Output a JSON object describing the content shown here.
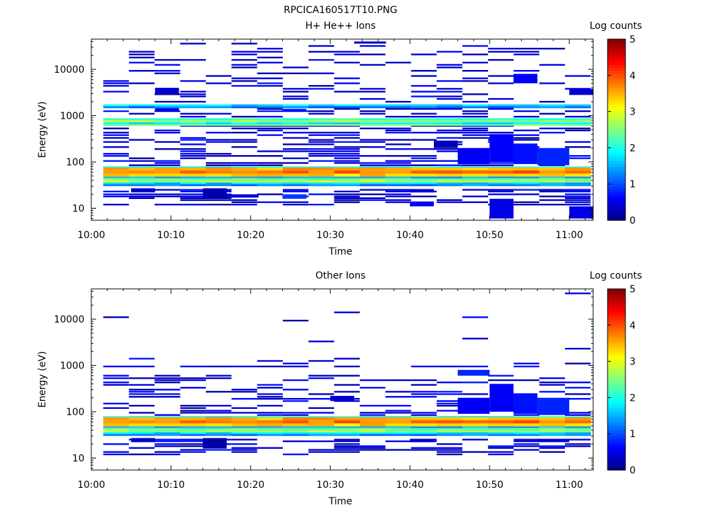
{
  "figure_title": "RPCICA160517T10.PNG",
  "chart_data": [
    {
      "type": "heatmap",
      "title": "H+ He++ Ions",
      "xlabel": "Time",
      "ylabel": "Energy (eV)",
      "colorbar_label": "Log counts",
      "colorbar_ticks": [
        "0",
        "1",
        "2",
        "3",
        "4",
        "5"
      ],
      "colorbar_range": [
        0,
        5
      ],
      "y_scale": "log",
      "ylim": [
        5.5,
        45000
      ],
      "xlim": [
        "10:00",
        "11:03"
      ],
      "x_ticks": [
        "10:00",
        "10:10",
        "10:20",
        "10:30",
        "10:40",
        "10:50",
        "11:00"
      ],
      "y_ticks": [
        "10",
        "100",
        "1000",
        "10000"
      ],
      "background_bands": [
        {
          "e_lo": 30,
          "e_hi": 33,
          "v": 1.3
        },
        {
          "e_lo": 33,
          "e_hi": 36,
          "v": 1.6
        },
        {
          "e_lo": 36,
          "e_hi": 41,
          "v": 2.7
        },
        {
          "e_lo": 41,
          "e_hi": 45,
          "v": 2.2
        },
        {
          "e_lo": 45,
          "e_hi": 48,
          "v": 1.4
        },
        {
          "e_lo": 48,
          "e_hi": 56,
          "v": 3.4
        },
        {
          "e_lo": 56,
          "e_hi": 66,
          "v": 3.8
        },
        {
          "e_lo": 66,
          "e_hi": 76,
          "v": 3.5
        },
        {
          "e_lo": 76,
          "e_hi": 80,
          "v": 1.8
        },
        {
          "e_lo": 600,
          "e_hi": 650,
          "v": 2.4
        },
        {
          "e_lo": 650,
          "e_hi": 720,
          "v": 1.8
        },
        {
          "e_lo": 720,
          "e_hi": 800,
          "v": 2.6
        },
        {
          "e_lo": 800,
          "e_hi": 880,
          "v": 2.1
        },
        {
          "e_lo": 1450,
          "e_hi": 1600,
          "v": 1.2
        },
        {
          "e_lo": 1600,
          "e_hi": 1750,
          "v": 1.7
        }
      ],
      "cells": [
        {
          "t0": "10:05",
          "t1": "10:08",
          "e_lo": 22,
          "e_hi": 27,
          "v": 0.4
        },
        {
          "t0": "10:14",
          "t1": "10:17",
          "e_lo": 16,
          "e_hi": 27,
          "v": 0.2
        },
        {
          "t0": "10:17",
          "t1": "10:21",
          "e_lo": 17,
          "e_hi": 20,
          "v": 0.5
        },
        {
          "t0": "10:24",
          "t1": "10:27",
          "e_lo": 16,
          "e_hi": 20,
          "v": 0.9
        },
        {
          "t0": "10:40",
          "t1": "10:43",
          "e_lo": 22,
          "e_hi": 26,
          "v": 0.4
        },
        {
          "t0": "10:40",
          "t1": "10:43",
          "e_lo": 11,
          "e_hi": 14,
          "v": 0.6
        },
        {
          "t0": "10:50",
          "t1": "10:53",
          "e_lo": 6,
          "e_hi": 16,
          "v": 0.5
        },
        {
          "t0": "11:00",
          "t1": "11:03",
          "e_lo": 6,
          "e_hi": 11,
          "v": 0.5
        },
        {
          "t0": "10:43",
          "t1": "10:46",
          "e_lo": 200,
          "e_hi": 290,
          "v": 0.3
        },
        {
          "t0": "10:46",
          "t1": "10:50",
          "e_lo": 90,
          "e_hi": 200,
          "v": 0.6
        },
        {
          "t0": "10:50",
          "t1": "10:53",
          "e_lo": 100,
          "e_hi": 400,
          "v": 0.6
        },
        {
          "t0": "10:53",
          "t1": "10:56",
          "e_lo": 90,
          "e_hi": 250,
          "v": 0.7
        },
        {
          "t0": "10:56",
          "t1": "11:00",
          "e_lo": 85,
          "e_hi": 200,
          "v": 0.8
        },
        {
          "t0": "10:53",
          "t1": "10:56",
          "e_lo": 5000,
          "e_hi": 8000,
          "v": 0.6
        },
        {
          "t0": "11:00",
          "t1": "11:03",
          "e_lo": 2800,
          "e_hi": 3800,
          "v": 0.4
        },
        {
          "t0": "10:08",
          "t1": "10:11",
          "e_lo": 3000,
          "e_hi": 4000,
          "v": 0.4
        },
        {
          "t0": "10:08",
          "t1": "10:11",
          "e_lo": 1250,
          "e_hi": 1500,
          "v": 0.5
        },
        {
          "t0": "10:24",
          "t1": "10:27",
          "e_lo": 1250,
          "e_hi": 1400,
          "v": 0.7
        },
        {
          "t0": "10:33",
          "t1": "10:37",
          "e_lo": 36000,
          "e_hi": 40000,
          "v": 0.3
        }
      ]
    },
    {
      "type": "heatmap",
      "title": "Other Ions",
      "xlabel": "Time",
      "ylabel": "Energy (eV)",
      "colorbar_label": "Log counts",
      "colorbar_ticks": [
        "0",
        "1",
        "2",
        "3",
        "4",
        "5"
      ],
      "colorbar_range": [
        0,
        5
      ],
      "y_scale": "log",
      "ylim": [
        5.5,
        45000
      ],
      "xlim": [
        "10:00",
        "11:03"
      ],
      "x_ticks": [
        "10:00",
        "10:10",
        "10:20",
        "10:30",
        "10:40",
        "10:50",
        "11:00"
      ],
      "y_ticks": [
        "10",
        "100",
        "1000",
        "10000"
      ],
      "background_bands": [
        {
          "e_lo": 30,
          "e_hi": 33,
          "v": 1.3
        },
        {
          "e_lo": 33,
          "e_hi": 36,
          "v": 1.7
        },
        {
          "e_lo": 36,
          "e_hi": 41,
          "v": 2.6
        },
        {
          "e_lo": 41,
          "e_hi": 45,
          "v": 2.2
        },
        {
          "e_lo": 45,
          "e_hi": 48,
          "v": 1.4
        },
        {
          "e_lo": 48,
          "e_hi": 56,
          "v": 3.4
        },
        {
          "e_lo": 56,
          "e_hi": 66,
          "v": 3.8
        },
        {
          "e_lo": 66,
          "e_hi": 76,
          "v": 3.5
        },
        {
          "e_lo": 76,
          "e_hi": 80,
          "v": 1.8
        }
      ],
      "cells": [
        {
          "t0": "10:05",
          "t1": "10:08",
          "e_lo": 22,
          "e_hi": 27,
          "v": 0.4
        },
        {
          "t0": "10:14",
          "t1": "10:17",
          "e_lo": 16,
          "e_hi": 27,
          "v": 0.2
        },
        {
          "t0": "10:40",
          "t1": "10:43",
          "e_lo": 22,
          "e_hi": 26,
          "v": 0.4
        },
        {
          "t0": "10:56",
          "t1": "11:00",
          "e_lo": 22,
          "e_hi": 26,
          "v": 0.4
        },
        {
          "t0": "10:46",
          "t1": "10:50",
          "e_lo": 90,
          "e_hi": 200,
          "v": 0.6
        },
        {
          "t0": "10:50",
          "t1": "10:53",
          "e_lo": 100,
          "e_hi": 400,
          "v": 0.6
        },
        {
          "t0": "10:53",
          "t1": "10:56",
          "e_lo": 90,
          "e_hi": 250,
          "v": 0.7
        },
        {
          "t0": "10:56",
          "t1": "11:00",
          "e_lo": 85,
          "e_hi": 200,
          "v": 0.8
        },
        {
          "t0": "10:46",
          "t1": "10:50",
          "e_lo": 600,
          "e_hi": 800,
          "v": 0.8
        },
        {
          "t0": "10:30",
          "t1": "10:33",
          "e_lo": 170,
          "e_hi": 220,
          "v": 0.4
        }
      ]
    }
  ]
}
